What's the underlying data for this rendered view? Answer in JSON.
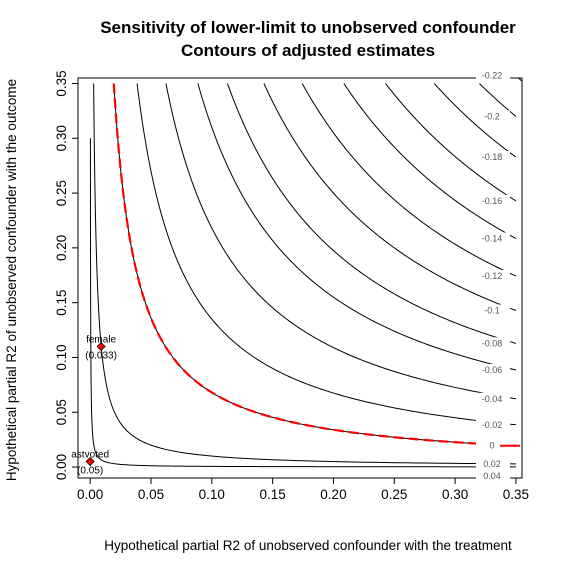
{
  "chart_data": {
    "type": "contour",
    "title": "Sensitivity of lower-limit to unobserved confounder",
    "subtitle": "Contours of adjusted estimates",
    "xlabel": "Hypothetical partial R2 of unobserved confounder with the treatment",
    "ylabel": "Hypothetical partial R2 of unobserved confounder with the outcome",
    "xlim": [
      -0.01,
      0.355
    ],
    "ylim": [
      -0.01,
      0.355
    ],
    "xticks": [
      "0.00",
      "0.05",
      "0.10",
      "0.15",
      "0.20",
      "0.25",
      "0.30",
      "0.35"
    ],
    "yticks": [
      "0.00",
      "0.05",
      "0.10",
      "0.15",
      "0.20",
      "0.25",
      "0.30",
      "0.35"
    ],
    "xtick_values": [
      0,
      0.05,
      0.1,
      0.15,
      0.2,
      0.25,
      0.3,
      0.35
    ],
    "ytick_values": [
      0,
      0.05,
      0.1,
      0.15,
      0.2,
      0.25,
      0.3,
      0.35
    ],
    "contour_levels": [
      {
        "label": "0.04",
        "k": 6e-05
      },
      {
        "label": "0.02",
        "k": 0.001
      },
      {
        "label": "0",
        "k": 0.0068,
        "threshold": true
      },
      {
        "label": "-0.02",
        "k": 0.0135
      },
      {
        "label": "-0.04",
        "k": 0.0218
      },
      {
        "label": "-0.06",
        "k": 0.031
      },
      {
        "label": "-0.08",
        "k": 0.0395
      },
      {
        "label": "-0.1",
        "k": 0.05
      },
      {
        "label": "-0.12",
        "k": 0.061
      },
      {
        "label": "-0.14",
        "k": 0.073
      },
      {
        "label": "-0.16",
        "k": 0.085
      },
      {
        "label": "-0.18",
        "k": 0.099
      },
      {
        "label": "-0.2",
        "k": 0.112
      },
      {
        "label": "-0.22",
        "k": 0.125
      }
    ],
    "points": [
      {
        "name": "female",
        "value": "(0.033)",
        "x": 0.009,
        "y": 0.11
      },
      {
        "name": "astvoted",
        "value": "(0.05)",
        "x": 0.0,
        "y": 0.005
      }
    ],
    "colors": {
      "contour": "#000000",
      "threshold": "#ff0000",
      "points": "#ff0000",
      "contour_label": "#555555"
    }
  }
}
